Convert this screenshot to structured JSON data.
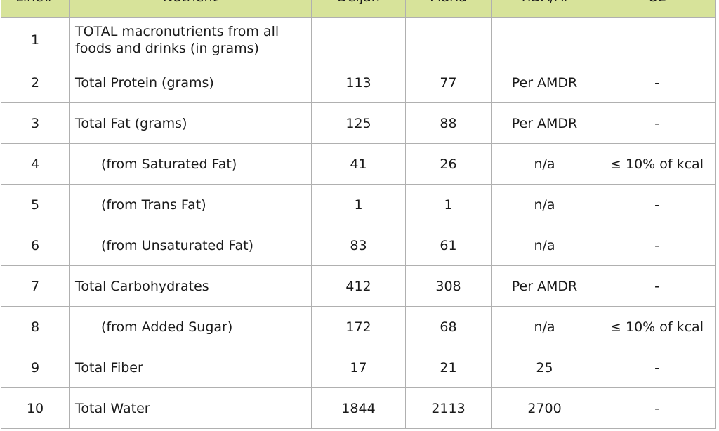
{
  "columns": [
    "Line#",
    "Nutrient",
    "Deljan",
    "Maria",
    "RDA/AI",
    "UL"
  ],
  "rows": [
    {
      "line": "1",
      "nutrient": "TOTAL macronutrients from all foods and drinks (in grams)",
      "indent": false,
      "deljan": "",
      "maria": "",
      "rda": "",
      "ul": ""
    },
    {
      "line": "2",
      "nutrient": "Total Protein (grams)",
      "indent": false,
      "deljan": "113",
      "maria": "77",
      "rda": "Per AMDR",
      "ul": "-"
    },
    {
      "line": "3",
      "nutrient": "Total Fat (grams)",
      "indent": false,
      "deljan": "125",
      "maria": "88",
      "rda": "Per AMDR",
      "ul": "-"
    },
    {
      "line": "4",
      "nutrient": "(from Saturated Fat)",
      "indent": true,
      "deljan": "41",
      "maria": "26",
      "rda": "n/a",
      "ul": "≤ 10% of kcal"
    },
    {
      "line": "5",
      "nutrient": "(from Trans Fat)",
      "indent": true,
      "deljan": "1",
      "maria": "1",
      "rda": "n/a",
      "ul": "-"
    },
    {
      "line": "6",
      "nutrient": "(from Unsaturated Fat)",
      "indent": true,
      "deljan": "83",
      "maria": "61",
      "rda": "n/a",
      "ul": "-"
    },
    {
      "line": "7",
      "nutrient": "Total Carbohydrates",
      "indent": false,
      "deljan": "412",
      "maria": "308",
      "rda": "Per AMDR",
      "ul": "-"
    },
    {
      "line": "8",
      "nutrient": "(from Added Sugar)",
      "indent": true,
      "deljan": "172",
      "maria": "68",
      "rda": "n/a",
      "ul": "≤ 10% of kcal"
    },
    {
      "line": "9",
      "nutrient": "Total Fiber",
      "indent": false,
      "deljan": "17",
      "maria": "21",
      "rda": "25",
      "ul": "-"
    },
    {
      "line": "10",
      "nutrient": "Total Water",
      "indent": false,
      "deljan": "1844",
      "maria": "2113",
      "rda": "2700",
      "ul": "-"
    }
  ],
  "colors": {
    "header_bg": "#d7e39a",
    "border": "#b0b0b0",
    "text": "#1a1a1a"
  }
}
